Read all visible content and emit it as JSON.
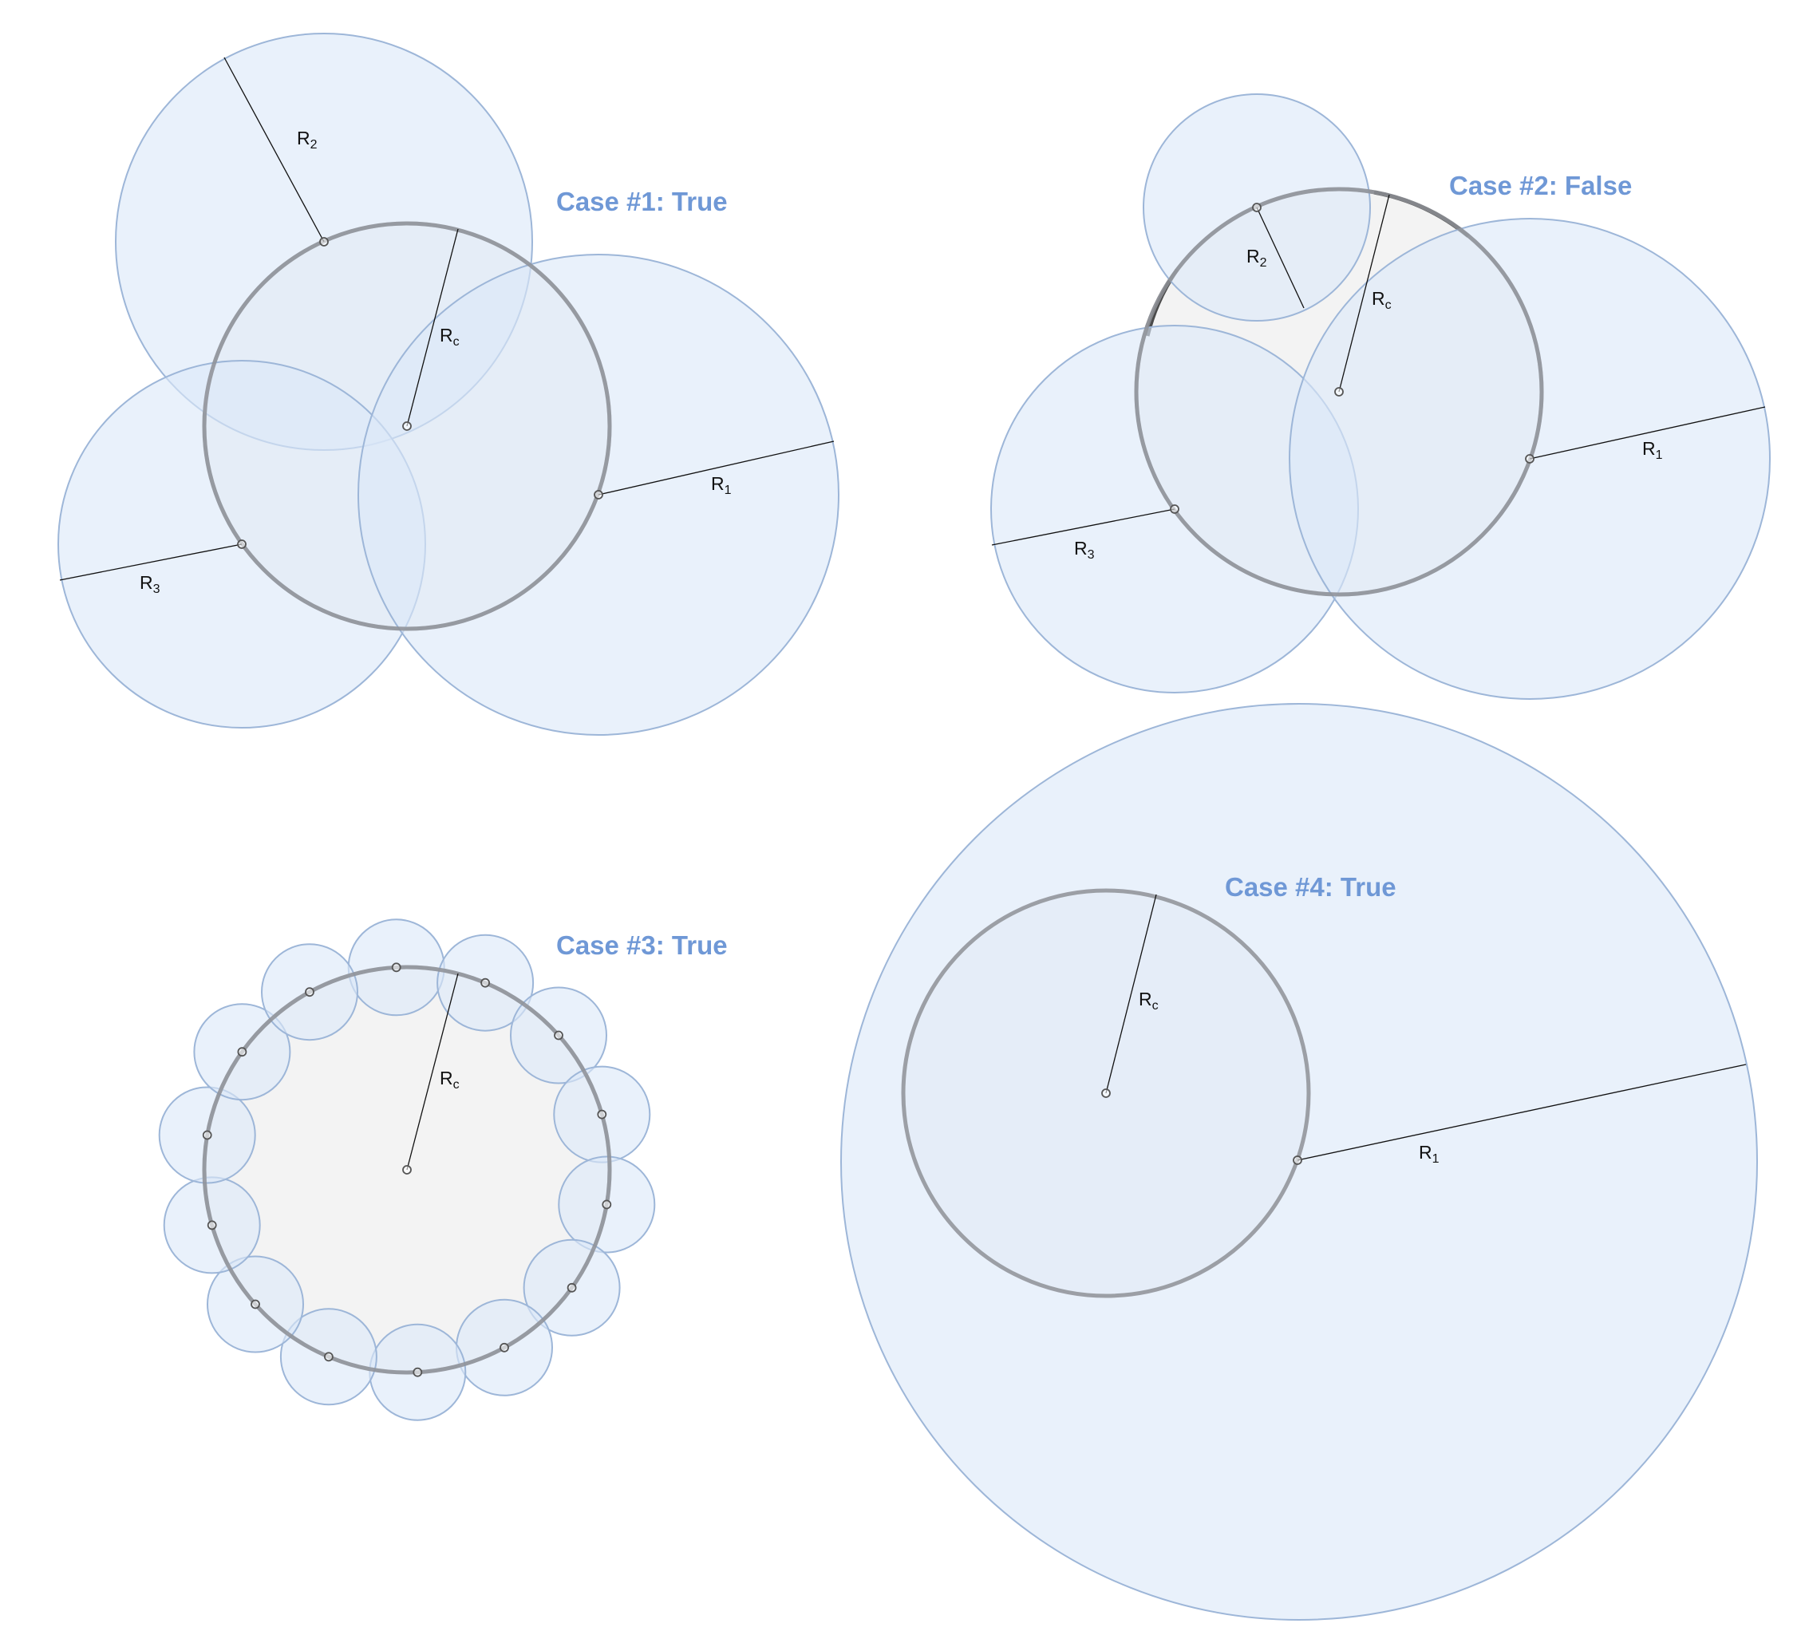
{
  "cases": [
    {
      "title": "Case #1: True",
      "labels": {
        "rc": {
          "main": "R",
          "sub": "c"
        },
        "helpers": [
          {
            "main": "R",
            "sub": "1"
          },
          {
            "main": "R",
            "sub": "2"
          },
          {
            "main": "R",
            "sub": "3"
          }
        ]
      }
    },
    {
      "title": "Case #2: False",
      "labels": {
        "rc": {
          "main": "R",
          "sub": "c"
        },
        "helpers": [
          {
            "main": "R",
            "sub": "1"
          },
          {
            "main": "R",
            "sub": "2"
          },
          {
            "main": "R",
            "sub": "3"
          }
        ]
      }
    },
    {
      "title": "Case #3: True",
      "labels": {
        "rc": {
          "main": "R",
          "sub": "c"
        },
        "helpers": []
      }
    },
    {
      "title": "Case #4: True",
      "labels": {
        "rc": {
          "main": "R",
          "sub": "c"
        },
        "helpers": [
          {
            "main": "R",
            "sub": "1"
          }
        ]
      }
    }
  ],
  "colors": {
    "title": "#6f98d6",
    "helper_fill": "#dbe8f8",
    "helper_stroke": "#9db6d8",
    "covered_stroke": "#8e9196",
    "uncovered_fill": "#f3f3f3",
    "uncovered_arc": "#4b4b4b"
  }
}
